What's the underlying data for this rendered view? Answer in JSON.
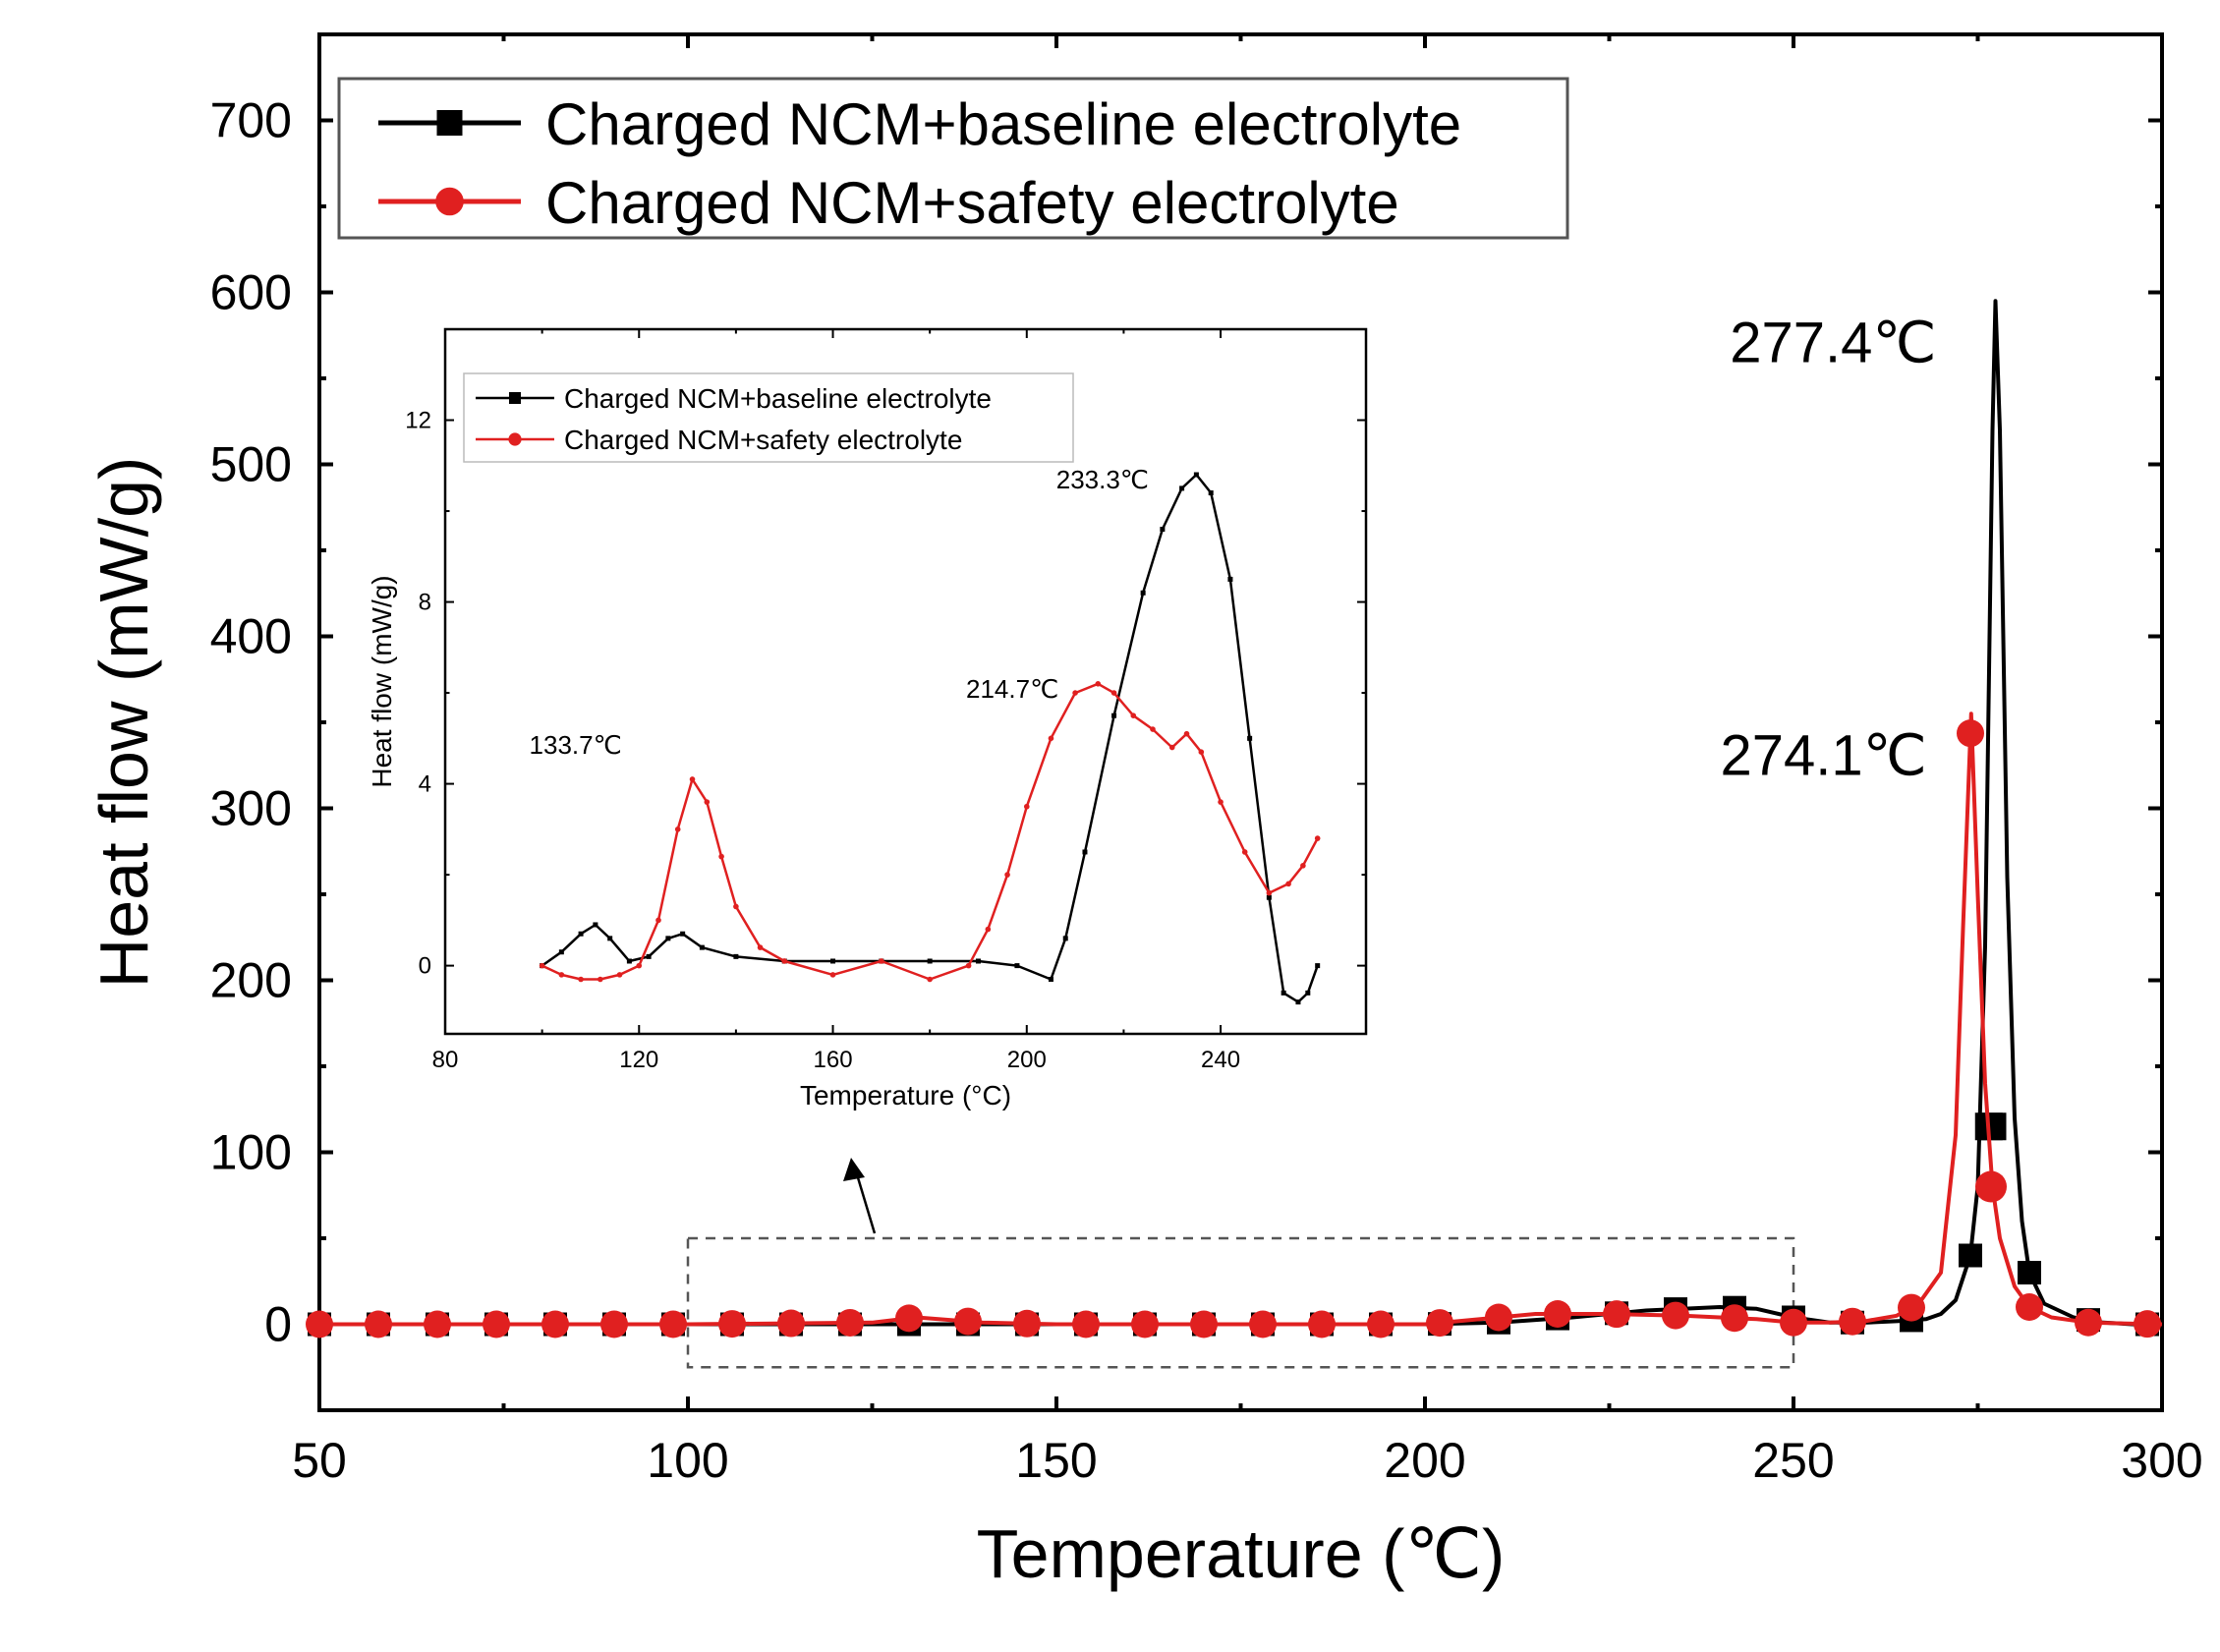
{
  "chart_data": [
    {
      "type": "line",
      "title": "",
      "xlabel": "Temperature (℃)",
      "ylabel": "Heat flow (mW/g)",
      "xlim": [
        50,
        300
      ],
      "ylim": [
        -50,
        750
      ],
      "xticks": [
        50,
        100,
        150,
        200,
        250,
        300
      ],
      "yticks": [
        0,
        100,
        200,
        300,
        400,
        500,
        600,
        700
      ],
      "legend_position": "top-left",
      "grid": false,
      "series": [
        {
          "name": "Charged NCM+baseline electrolyte",
          "color": "#000000",
          "marker": "square",
          "x": [
            50,
            100,
            150,
            200,
            210,
            220,
            230,
            240,
            245,
            250,
            255,
            260,
            265,
            268,
            270,
            272,
            274,
            275,
            276,
            277,
            277.4,
            278,
            279,
            280,
            281,
            282,
            284,
            288,
            292,
            296,
            300
          ],
          "y": [
            0,
            0,
            0,
            0,
            1,
            4,
            8,
            10,
            9,
            4,
            1,
            1,
            2,
            3,
            6,
            14,
            40,
            80,
            220,
            520,
            595,
            520,
            260,
            120,
            60,
            30,
            12,
            4,
            1,
            0,
            0
          ]
        },
        {
          "name": "Charged NCM+safety electrolyte",
          "color": "#e02020",
          "marker": "circle",
          "x": [
            50,
            100,
            125,
            131,
            140,
            150,
            200,
            210,
            215,
            225,
            235,
            245,
            250,
            255,
            260,
            264,
            267,
            270,
            272,
            273,
            274.1,
            275,
            276,
            277,
            278,
            280,
            282,
            285,
            290,
            300
          ],
          "y": [
            0,
            0,
            1,
            4,
            1,
            0,
            0,
            4,
            6,
            6,
            5,
            3,
            1,
            1,
            2,
            5,
            12,
            30,
            110,
            230,
            355,
            250,
            140,
            80,
            50,
            22,
            10,
            4,
            1,
            0
          ]
        }
      ],
      "annotations": [
        {
          "text": "277.4℃",
          "x": 277.4,
          "y": 595
        },
        {
          "text": "274.1℃",
          "x": 274.1,
          "y": 355
        }
      ],
      "marked_region": {
        "x": [
          100,
          250
        ],
        "y": [
          -25,
          50
        ]
      }
    },
    {
      "type": "line",
      "title": "",
      "xlabel": "Temperature (°C)",
      "ylabel": "Heat flow (mW/g)",
      "xlim": [
        80,
        270
      ],
      "ylim": [
        -1.5,
        14
      ],
      "xticks": [
        80,
        120,
        160,
        200,
        240
      ],
      "yticks": [
        0,
        4,
        8,
        12
      ],
      "legend_position": "top-left",
      "grid": false,
      "series": [
        {
          "name": "Charged NCM+baseline electrolyte",
          "color": "#000000",
          "marker": "square",
          "x": [
            100,
            104,
            108,
            111,
            114,
            118,
            122,
            126,
            129,
            133,
            140,
            150,
            160,
            170,
            180,
            190,
            198,
            205,
            208,
            212,
            218,
            224,
            228,
            232,
            235,
            238,
            242,
            246,
            250,
            253,
            256,
            258,
            260
          ],
          "y": [
            0,
            0.3,
            0.7,
            0.9,
            0.6,
            0.1,
            0.2,
            0.6,
            0.7,
            0.4,
            0.2,
            0.1,
            0.1,
            0.1,
            0.1,
            0.1,
            0,
            -0.3,
            0.6,
            2.5,
            5.5,
            8.2,
            9.6,
            10.5,
            10.8,
            10.4,
            8.5,
            5.0,
            1.5,
            -0.6,
            -0.8,
            -0.6,
            0
          ]
        },
        {
          "name": "Charged NCM+safety electrolyte",
          "color": "#e02020",
          "marker": "circle",
          "x": [
            100,
            104,
            108,
            112,
            116,
            120,
            124,
            128,
            131,
            134,
            137,
            140,
            145,
            150,
            160,
            170,
            180,
            188,
            192,
            196,
            200,
            205,
            210,
            214.7,
            218,
            222,
            226,
            230,
            233,
            236,
            240,
            245,
            250,
            254,
            257,
            260
          ],
          "y": [
            0,
            -0.2,
            -0.3,
            -0.3,
            -0.2,
            0,
            1.0,
            3.0,
            4.1,
            3.6,
            2.4,
            1.3,
            0.4,
            0.1,
            -0.2,
            0.1,
            -0.3,
            0,
            0.8,
            2.0,
            3.5,
            5.0,
            6.0,
            6.2,
            6.0,
            5.5,
            5.2,
            4.8,
            5.1,
            4.7,
            3.6,
            2.5,
            1.6,
            1.8,
            2.2,
            2.8
          ]
        }
      ],
      "annotations": [
        {
          "text": "233.3℃",
          "x": 233.3,
          "y": 10.8
        },
        {
          "text": "214.7℃",
          "x": 214.7,
          "y": 6.2
        },
        {
          "text": "133.7℃",
          "x": 133.7,
          "y": 4.1
        }
      ]
    }
  ]
}
